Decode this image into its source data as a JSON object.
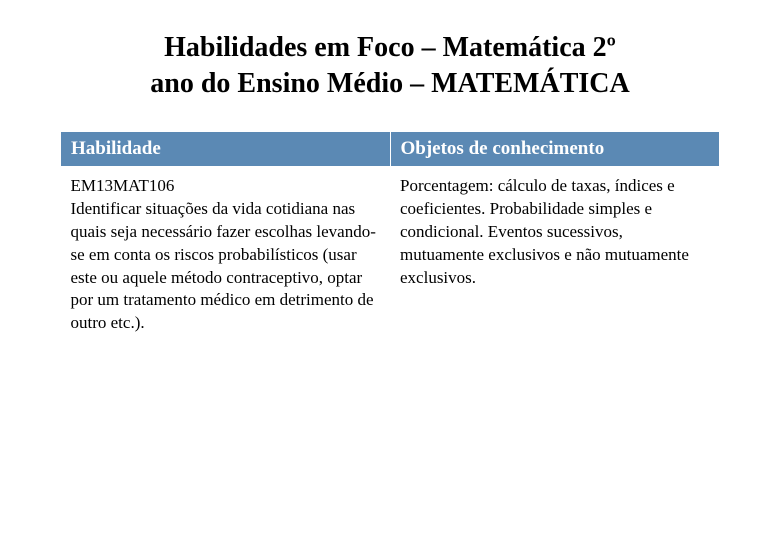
{
  "title_line1": "Habilidades em Foco – Matemática 2º",
  "title_line2": "ano do Ensino Médio – MATEMÁTICA",
  "table": {
    "header_bg": "#5b89b4",
    "header_color": "#ffffff",
    "columns": [
      "Habilidade",
      "Objetos de conhecimento"
    ],
    "rows": [
      [
        "EM13MAT106\nIdentificar situações da vida cotidiana nas quais seja necessário fazer escolhas levando-se em conta os riscos probabilísticos (usar este ou aquele método contraceptivo, optar por um tratamento médico em detrimento de outro etc.).",
        "Porcentagem: cálculo de taxas, índices e coeficientes. Probabilidade simples e condicional. Eventos sucessivos, mutuamente exclusivos e não mutuamente exclusivos."
      ]
    ]
  }
}
